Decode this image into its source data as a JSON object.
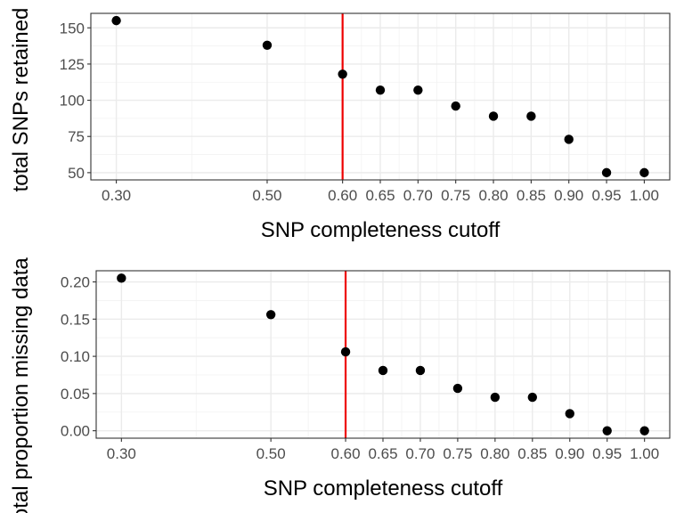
{
  "chart_data": [
    {
      "type": "scatter",
      "xlabel": "SNP completeness cutoff",
      "ylabel": "total SNPs retained",
      "x_ticks": [
        "0.30",
        "0.50",
        "0.60",
        "0.65",
        "0.70",
        "0.75",
        "0.80",
        "0.85",
        "0.90",
        "0.95",
        "1.00"
      ],
      "y_ticks": [
        "50",
        "75",
        "100",
        "125",
        "150"
      ],
      "xlim": [
        0.3,
        1.0
      ],
      "ylim": [
        45,
        160
      ],
      "grid": true,
      "points": [
        {
          "x": 0.3,
          "y": 155
        },
        {
          "x": 0.5,
          "y": 138
        },
        {
          "x": 0.6,
          "y": 118
        },
        {
          "x": 0.65,
          "y": 107
        },
        {
          "x": 0.7,
          "y": 107
        },
        {
          "x": 0.75,
          "y": 96
        },
        {
          "x": 0.8,
          "y": 89
        },
        {
          "x": 0.85,
          "y": 89
        },
        {
          "x": 0.9,
          "y": 73
        },
        {
          "x": 0.95,
          "y": 50
        },
        {
          "x": 1.0,
          "y": 50
        }
      ],
      "vline": {
        "x": 0.6,
        "color": "#ee0000"
      },
      "point_color": "#000000"
    },
    {
      "type": "scatter",
      "xlabel": "SNP completeness cutoff",
      "ylabel": "total proportion missing data",
      "x_ticks": [
        "0.30",
        "0.50",
        "0.60",
        "0.65",
        "0.70",
        "0.75",
        "0.80",
        "0.85",
        "0.90",
        "0.95",
        "1.00"
      ],
      "y_ticks": [
        "0.00",
        "0.05",
        "0.10",
        "0.15",
        "0.20"
      ],
      "xlim": [
        0.3,
        1.0
      ],
      "ylim": [
        -0.01,
        0.215
      ],
      "grid": true,
      "points": [
        {
          "x": 0.3,
          "y": 0.205
        },
        {
          "x": 0.5,
          "y": 0.156
        },
        {
          "x": 0.6,
          "y": 0.106
        },
        {
          "x": 0.65,
          "y": 0.081
        },
        {
          "x": 0.7,
          "y": 0.081
        },
        {
          "x": 0.75,
          "y": 0.057
        },
        {
          "x": 0.8,
          "y": 0.045
        },
        {
          "x": 0.85,
          "y": 0.045
        },
        {
          "x": 0.9,
          "y": 0.023
        },
        {
          "x": 0.95,
          "y": 0.0
        },
        {
          "x": 1.0,
          "y": 0.0
        }
      ],
      "vline": {
        "x": 0.6,
        "color": "#ee0000"
      },
      "point_color": "#000000"
    }
  ]
}
